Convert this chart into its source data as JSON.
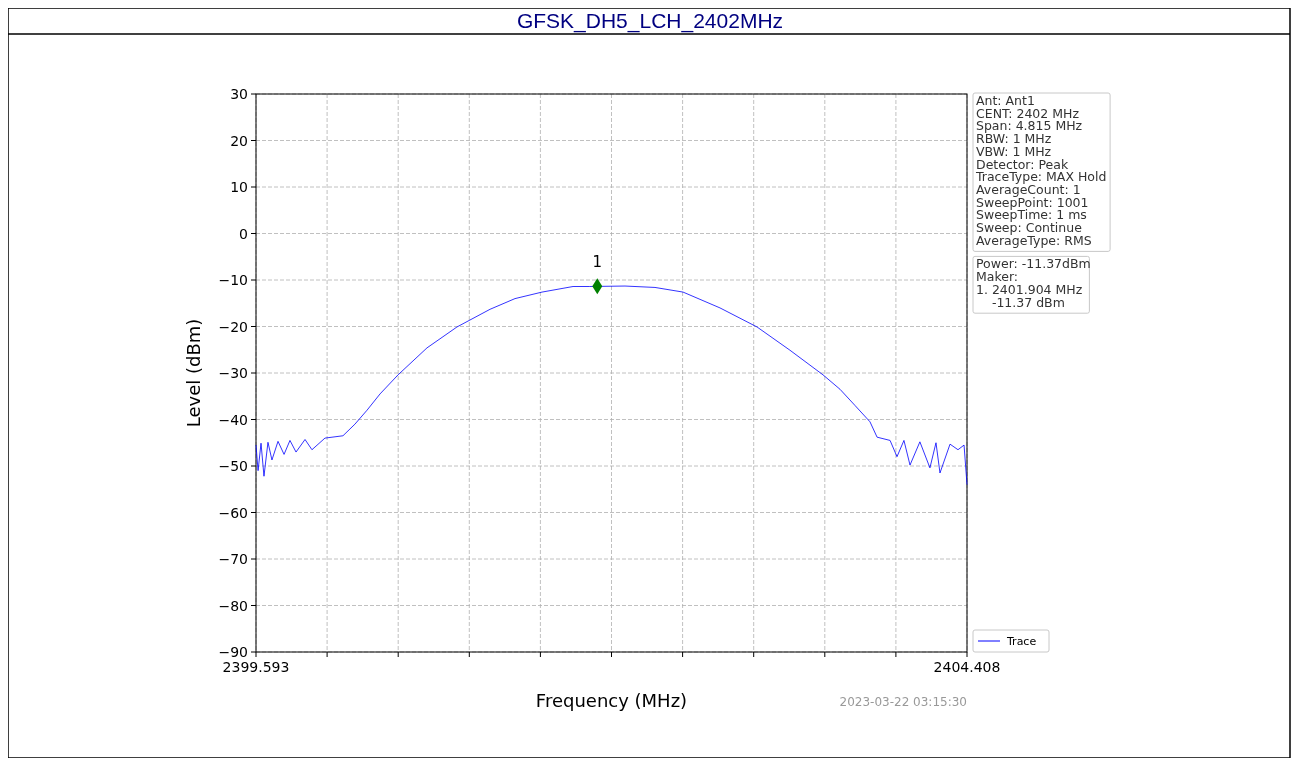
{
  "chart_data": {
    "type": "line",
    "title": "GFSK_DH5_LCH_2402MHz",
    "xlabel": "Frequency (MHz)",
    "ylabel": "Level (dBm)",
    "xlim": [
      2399.593,
      2404.408
    ],
    "xticks": [
      2399.593,
      {
        "value": 2400.0745,
        "label": null
      },
      {
        "value": 2400.556,
        "label": null
      },
      {
        "value": 2401.0375,
        "label": null
      },
      {
        "value": 2401.519,
        "label": null
      },
      {
        "value": 2402.0005,
        "label": null
      },
      {
        "value": 2402.482,
        "label": null
      },
      {
        "value": 2402.9635,
        "label": null
      },
      {
        "value": 2403.445,
        "label": null
      },
      {
        "value": 2403.9265,
        "label": null
      },
      2404.408
    ],
    "ylim": [
      -90,
      30
    ],
    "yticks": [
      -90,
      -80,
      -70,
      -60,
      -50,
      -40,
      -30,
      -20,
      -10,
      0,
      10,
      20,
      30
    ],
    "grid": true,
    "legend": "bottom right",
    "series": [
      {
        "name": "Trace",
        "color": "#0000ff",
        "marker": "none",
        "x": [
          2399.593,
          2399.607,
          2399.627,
          2399.647,
          2399.674,
          2399.701,
          2399.742,
          2399.783,
          2399.823,
          2399.864,
          2399.925,
          2399.972,
          2400.06,
          2400.182,
          2400.263,
          2400.345,
          2400.433,
          2400.555,
          2400.751,
          2400.954,
          2401.178,
          2401.347,
          2401.53,
          2401.74,
          2401.85,
          2402.092,
          2402.295,
          2402.485,
          2402.735,
          2402.986,
          2403.209,
          2403.433,
          2403.548,
          2403.65,
          2403.751,
          2403.799,
          2403.887,
          2403.934,
          2403.981,
          2404.022,
          2404.089,
          2404.157,
          2404.198,
          2404.225,
          2404.293,
          2404.347,
          2404.388,
          2404.408
        ],
        "values": [
          -45.5,
          -51,
          -45.1,
          -52.2,
          -44.9,
          -48.7,
          -44.7,
          -47.5,
          -44.5,
          -47,
          -44.3,
          -46.5,
          -44,
          -43.5,
          -41,
          -38,
          -34.5,
          -30.4,
          -24.6,
          -20.1,
          -16.3,
          -14,
          -12.6,
          -11.4,
          -11.4,
          -11.3,
          -11.6,
          -12.6,
          -16,
          -20.1,
          -25.1,
          -30.4,
          -33.5,
          -37,
          -40.5,
          -43.8,
          -44.5,
          -48,
          -44.5,
          -49.8,
          -44.8,
          -50.4,
          -45,
          -51.5,
          -45.3,
          -46.5,
          -45.5,
          -54
        ]
      },
      {
        "color": "#008000",
        "type": "scatter",
        "marker": "diamond",
        "x": [
          2401.904
        ],
        "values": [
          -11.37
        ]
      }
    ],
    "annotations": [
      {
        "text": "1",
        "x": 2401.904,
        "y": -11.37
      },
      "Ant: Ant1\nCENT: 2402 MHz\nSpan: 4.815 MHz\nRBW: 1 MHz\nVBW: 1 MHz\nDetector: Peak\nTraceType: MAX Hold\nAverageCount: 1\nSweepPoint: 1001\nSweepTime: 1 ms\nSweep: Continue\nAverageType: RMS",
      "Power: -11.37dBm\nMaker:\n1. 2401.904 MHz\n    -11.37 dBm",
      "2023-03-22 03:15:30"
    ]
  }
}
